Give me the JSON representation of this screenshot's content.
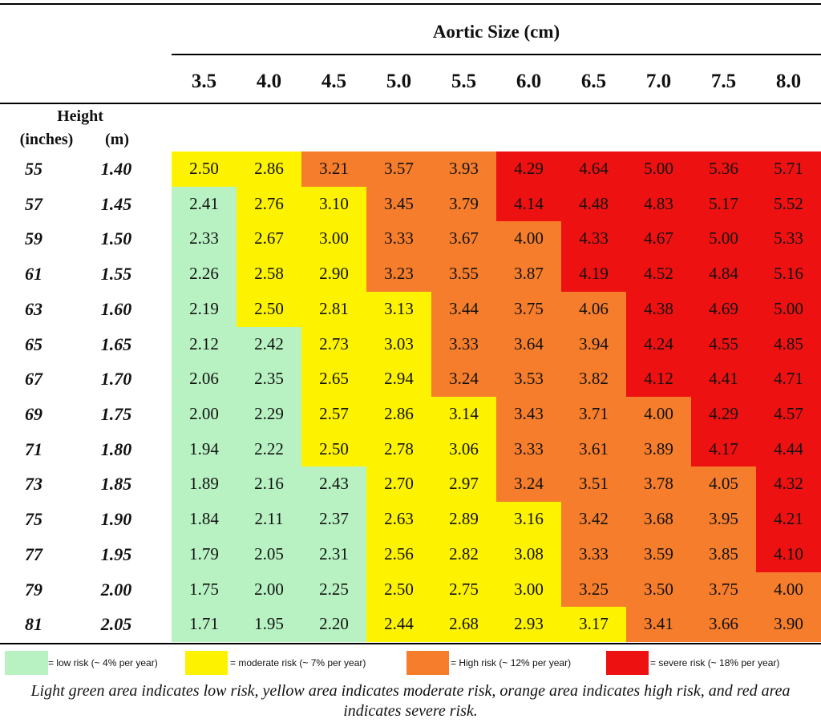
{
  "header": {
    "title": "Aortic Size (cm)",
    "height_label": "Height",
    "inches_label": "(inches)",
    "m_label": "(m)"
  },
  "columns": [
    "3.5",
    "4.0",
    "4.5",
    "5.0",
    "5.5",
    "6.0",
    "6.5",
    "7.0",
    "7.5",
    "8.0"
  ],
  "rows": [
    {
      "inches": "55",
      "m": "1.40",
      "values": [
        "2.50",
        "2.86",
        "3.21",
        "3.57",
        "3.93",
        "4.29",
        "4.64",
        "5.00",
        "5.36",
        "5.71"
      ],
      "risk": [
        "m",
        "m",
        "h",
        "h",
        "h",
        "s",
        "s",
        "s",
        "s",
        "s"
      ]
    },
    {
      "inches": "57",
      "m": "1.45",
      "values": [
        "2.41",
        "2.76",
        "3.10",
        "3.45",
        "3.79",
        "4.14",
        "4.48",
        "4.83",
        "5.17",
        "5.52"
      ],
      "risk": [
        "l",
        "m",
        "m",
        "h",
        "h",
        "s",
        "s",
        "s",
        "s",
        "s"
      ]
    },
    {
      "inches": "59",
      "m": "1.50",
      "values": [
        "2.33",
        "2.67",
        "3.00",
        "3.33",
        "3.67",
        "4.00",
        "4.33",
        "4.67",
        "5.00",
        "5.33"
      ],
      "risk": [
        "l",
        "m",
        "m",
        "h",
        "h",
        "h",
        "s",
        "s",
        "s",
        "s"
      ]
    },
    {
      "inches": "61",
      "m": "1.55",
      "values": [
        "2.26",
        "2.58",
        "2.90",
        "3.23",
        "3.55",
        "3.87",
        "4.19",
        "4.52",
        "4.84",
        "5.16"
      ],
      "risk": [
        "l",
        "m",
        "m",
        "h",
        "h",
        "h",
        "s",
        "s",
        "s",
        "s"
      ]
    },
    {
      "inches": "63",
      "m": "1.60",
      "values": [
        "2.19",
        "2.50",
        "2.81",
        "3.13",
        "3.44",
        "3.75",
        "4.06",
        "4.38",
        "4.69",
        "5.00"
      ],
      "risk": [
        "l",
        "m",
        "m",
        "m",
        "h",
        "h",
        "h",
        "s",
        "s",
        "s"
      ]
    },
    {
      "inches": "65",
      "m": "1.65",
      "values": [
        "2.12",
        "2.42",
        "2.73",
        "3.03",
        "3.33",
        "3.64",
        "3.94",
        "4.24",
        "4.55",
        "4.85"
      ],
      "risk": [
        "l",
        "l",
        "m",
        "m",
        "h",
        "h",
        "h",
        "s",
        "s",
        "s"
      ]
    },
    {
      "inches": "67",
      "m": "1.70",
      "values": [
        "2.06",
        "2.35",
        "2.65",
        "2.94",
        "3.24",
        "3.53",
        "3.82",
        "4.12",
        "4.41",
        "4.71"
      ],
      "risk": [
        "l",
        "l",
        "m",
        "m",
        "h",
        "h",
        "h",
        "s",
        "s",
        "s"
      ]
    },
    {
      "inches": "69",
      "m": "1.75",
      "values": [
        "2.00",
        "2.29",
        "2.57",
        "2.86",
        "3.14",
        "3.43",
        "3.71",
        "4.00",
        "4.29",
        "4.57"
      ],
      "risk": [
        "l",
        "l",
        "m",
        "m",
        "m",
        "h",
        "h",
        "h",
        "s",
        "s"
      ]
    },
    {
      "inches": "71",
      "m": "1.80",
      "values": [
        "1.94",
        "2.22",
        "2.50",
        "2.78",
        "3.06",
        "3.33",
        "3.61",
        "3.89",
        "4.17",
        "4.44"
      ],
      "risk": [
        "l",
        "l",
        "m",
        "m",
        "m",
        "h",
        "h",
        "h",
        "s",
        "s"
      ]
    },
    {
      "inches": "73",
      "m": "1.85",
      "values": [
        "1.89",
        "2.16",
        "2.43",
        "2.70",
        "2.97",
        "3.24",
        "3.51",
        "3.78",
        "4.05",
        "4.32"
      ],
      "risk": [
        "l",
        "l",
        "l",
        "m",
        "m",
        "h",
        "h",
        "h",
        "h",
        "s"
      ]
    },
    {
      "inches": "75",
      "m": "1.90",
      "values": [
        "1.84",
        "2.11",
        "2.37",
        "2.63",
        "2.89",
        "3.16",
        "3.42",
        "3.68",
        "3.95",
        "4.21"
      ],
      "risk": [
        "l",
        "l",
        "l",
        "m",
        "m",
        "m",
        "h",
        "h",
        "h",
        "s"
      ]
    },
    {
      "inches": "77",
      "m": "1.95",
      "values": [
        "1.79",
        "2.05",
        "2.31",
        "2.56",
        "2.82",
        "3.08",
        "3.33",
        "3.59",
        "3.85",
        "4.10"
      ],
      "risk": [
        "l",
        "l",
        "l",
        "m",
        "m",
        "m",
        "h",
        "h",
        "h",
        "s"
      ]
    },
    {
      "inches": "79",
      "m": "2.00",
      "values": [
        "1.75",
        "2.00",
        "2.25",
        "2.50",
        "2.75",
        "3.00",
        "3.25",
        "3.50",
        "3.75",
        "4.00"
      ],
      "risk": [
        "l",
        "l",
        "l",
        "m",
        "m",
        "m",
        "h",
        "h",
        "h",
        "h"
      ]
    },
    {
      "inches": "81",
      "m": "2.05",
      "values": [
        "1.71",
        "1.95",
        "2.20",
        "2.44",
        "2.68",
        "2.93",
        "3.17",
        "3.41",
        "3.66",
        "3.90"
      ],
      "risk": [
        "l",
        "l",
        "l",
        "m",
        "m",
        "m",
        "m",
        "h",
        "h",
        "h"
      ]
    }
  ],
  "risk_colors": {
    "l": "#b8f2c3",
    "m": "#fdf300",
    "h": "#f57d2b",
    "s": "#ee1111"
  },
  "legend": [
    {
      "key": "l",
      "text": "= low risk (~ 4% per year)"
    },
    {
      "key": "m",
      "text": "= moderate risk (~ 7% per year)"
    },
    {
      "key": "h",
      "text": "= High risk (~ 12% per year)"
    },
    {
      "key": "s",
      "text": "= severe risk (~ 18% per year)"
    }
  ],
  "caption": "Light green area indicates low risk, yellow area indicates moderate risk, orange area indicates high risk, and red area indicates severe risk."
}
